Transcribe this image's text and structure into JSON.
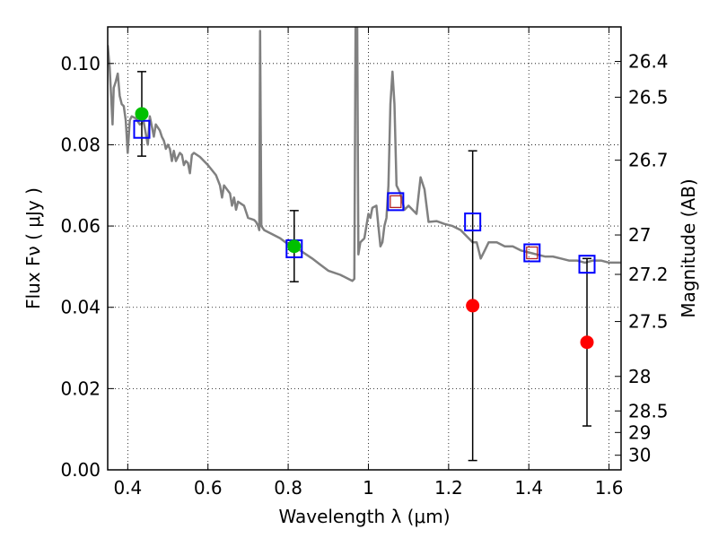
{
  "chart_data": {
    "type": "scatter",
    "xlabel": "Wavelength  λ (μm)",
    "ylabel": "Flux  Fν  ( μJy )",
    "y2label": "Magnitude (AB)",
    "xlim": [
      0.35,
      1.63
    ],
    "ylim": [
      0.0,
      0.109
    ],
    "grid": true,
    "x_ticks": [
      {
        "value": 0.4,
        "label": "0.4"
      },
      {
        "value": 0.6,
        "label": "0.6"
      },
      {
        "value": 0.8,
        "label": "0.8"
      },
      {
        "value": 1.0,
        "label": "1"
      },
      {
        "value": 1.2,
        "label": "1.2"
      },
      {
        "value": 1.4,
        "label": "1.4"
      },
      {
        "value": 1.6,
        "label": "1.6"
      }
    ],
    "y_ticks": [
      {
        "value": 0.0,
        "label": "0.00"
      },
      {
        "value": 0.02,
        "label": "0.02"
      },
      {
        "value": 0.04,
        "label": "0.04"
      },
      {
        "value": 0.06,
        "label": "0.06"
      },
      {
        "value": 0.08,
        "label": "0.08"
      },
      {
        "value": 0.1,
        "label": "0.10"
      }
    ],
    "y2_ticks": [
      {
        "label": "26.4",
        "flux": 0.1005
      },
      {
        "label": "26.5",
        "flux": 0.0917
      },
      {
        "label": "26.7",
        "flux": 0.0762
      },
      {
        "label": "27",
        "flux": 0.0578
      },
      {
        "label": "27.2",
        "flux": 0.0481
      },
      {
        "label": "27.5",
        "flux": 0.0365
      },
      {
        "label": "28",
        "flux": 0.023
      },
      {
        "label": "28.5",
        "flux": 0.0145
      },
      {
        "label": "29",
        "flux": 0.0092
      },
      {
        "label": "30",
        "flux": 0.0036
      }
    ],
    "model_spectrum": {
      "color": "#808080",
      "points": [
        [
          0.35,
          0.1045
        ],
        [
          0.355,
          0.099
        ],
        [
          0.36,
          0.089
        ],
        [
          0.362,
          0.085
        ],
        [
          0.365,
          0.094
        ],
        [
          0.37,
          0.0955
        ],
        [
          0.375,
          0.0975
        ],
        [
          0.38,
          0.092
        ],
        [
          0.385,
          0.09
        ],
        [
          0.39,
          0.0895
        ],
        [
          0.395,
          0.086
        ],
        [
          0.4,
          0.078
        ],
        [
          0.405,
          0.086
        ],
        [
          0.41,
          0.087
        ],
        [
          0.42,
          0.0865
        ],
        [
          0.43,
          0.085
        ],
        [
          0.44,
          0.0855
        ],
        [
          0.45,
          0.08
        ],
        [
          0.455,
          0.087
        ],
        [
          0.46,
          0.0845
        ],
        [
          0.465,
          0.082
        ],
        [
          0.47,
          0.085
        ],
        [
          0.48,
          0.0835
        ],
        [
          0.485,
          0.082
        ],
        [
          0.49,
          0.081
        ],
        [
          0.495,
          0.079
        ],
        [
          0.5,
          0.08
        ],
        [
          0.505,
          0.079
        ],
        [
          0.51,
          0.076
        ],
        [
          0.515,
          0.0785
        ],
        [
          0.52,
          0.076
        ],
        [
          0.53,
          0.078
        ],
        [
          0.535,
          0.0775
        ],
        [
          0.54,
          0.075
        ],
        [
          0.545,
          0.076
        ],
        [
          0.55,
          0.0755
        ],
        [
          0.555,
          0.073
        ],
        [
          0.56,
          0.0775
        ],
        [
          0.565,
          0.078
        ],
        [
          0.58,
          0.077
        ],
        [
          0.6,
          0.075
        ],
        [
          0.62,
          0.0725
        ],
        [
          0.63,
          0.07
        ],
        [
          0.635,
          0.067
        ],
        [
          0.64,
          0.07
        ],
        [
          0.655,
          0.068
        ],
        [
          0.66,
          0.065
        ],
        [
          0.665,
          0.067
        ],
        [
          0.67,
          0.064
        ],
        [
          0.675,
          0.066
        ],
        [
          0.69,
          0.065
        ],
        [
          0.7,
          0.062
        ],
        [
          0.715,
          0.0615
        ],
        [
          0.72,
          0.061
        ],
        [
          0.725,
          0.06
        ],
        [
          0.728,
          0.059
        ],
        [
          0.73,
          0.108
        ],
        [
          0.733,
          0.06
        ],
        [
          0.74,
          0.059
        ],
        [
          0.76,
          0.058
        ],
        [
          0.78,
          0.057
        ],
        [
          0.8,
          0.0555
        ],
        [
          0.83,
          0.054
        ],
        [
          0.86,
          0.052
        ],
        [
          0.88,
          0.0505
        ],
        [
          0.9,
          0.049
        ],
        [
          0.93,
          0.048
        ],
        [
          0.95,
          0.047
        ],
        [
          0.96,
          0.0465
        ],
        [
          0.965,
          0.047
        ],
        [
          0.968,
          0.11
        ],
        [
          0.972,
          0.11
        ],
        [
          0.975,
          0.053
        ],
        [
          0.98,
          0.056
        ],
        [
          0.99,
          0.057
        ],
        [
          1.0,
          0.063
        ],
        [
          1.005,
          0.062
        ],
        [
          1.01,
          0.0645
        ],
        [
          1.02,
          0.065
        ],
        [
          1.025,
          0.06
        ],
        [
          1.03,
          0.055
        ],
        [
          1.035,
          0.056
        ],
        [
          1.04,
          0.06
        ],
        [
          1.045,
          0.062
        ],
        [
          1.05,
          0.07
        ],
        [
          1.055,
          0.09
        ],
        [
          1.06,
          0.098
        ],
        [
          1.065,
          0.09
        ],
        [
          1.07,
          0.07
        ],
        [
          1.08,
          0.068
        ],
        [
          1.09,
          0.064
        ],
        [
          1.1,
          0.065
        ],
        [
          1.11,
          0.064
        ],
        [
          1.12,
          0.063
        ],
        [
          1.13,
          0.072
        ],
        [
          1.14,
          0.069
        ],
        [
          1.15,
          0.061
        ],
        [
          1.17,
          0.0612
        ],
        [
          1.19,
          0.0605
        ],
        [
          1.21,
          0.06
        ],
        [
          1.23,
          0.059
        ],
        [
          1.25,
          0.057
        ],
        [
          1.26,
          0.056
        ],
        [
          1.27,
          0.056
        ],
        [
          1.275,
          0.054
        ],
        [
          1.28,
          0.052
        ],
        [
          1.29,
          0.054
        ],
        [
          1.3,
          0.056
        ],
        [
          1.32,
          0.056
        ],
        [
          1.34,
          0.055
        ],
        [
          1.36,
          0.055
        ],
        [
          1.38,
          0.054
        ],
        [
          1.4,
          0.0535
        ],
        [
          1.42,
          0.053
        ],
        [
          1.44,
          0.0525
        ],
        [
          1.46,
          0.0525
        ],
        [
          1.48,
          0.052
        ],
        [
          1.5,
          0.0515
        ],
        [
          1.52,
          0.0515
        ],
        [
          1.54,
          0.051
        ],
        [
          1.56,
          0.0515
        ],
        [
          1.58,
          0.0515
        ],
        [
          1.6,
          0.051
        ],
        [
          1.63,
          0.051
        ]
      ]
    },
    "series": [
      {
        "marker": "open-square",
        "color": "#0000ff",
        "points": [
          {
            "x": 0.435,
            "y": 0.0838
          },
          {
            "x": 0.815,
            "y": 0.0544
          },
          {
            "x": 1.068,
            "y": 0.066
          },
          {
            "x": 1.26,
            "y": 0.061
          },
          {
            "x": 1.408,
            "y": 0.0534
          },
          {
            "x": 1.545,
            "y": 0.0506
          }
        ]
      },
      {
        "marker": "small-red-square",
        "color": "#b22222",
        "points": [
          {
            "x": 1.068,
            "y": 0.066
          },
          {
            "x": 1.408,
            "y": 0.0534
          }
        ]
      },
      {
        "marker": "green-circle",
        "color": "#00c000",
        "points": [
          {
            "x": 0.435,
            "y": 0.0876
          },
          {
            "x": 0.815,
            "y": 0.055
          }
        ]
      },
      {
        "marker": "red-circle",
        "color": "#ff0000",
        "points": [
          {
            "x": 1.26,
            "y": 0.0404
          },
          {
            "x": 1.545,
            "y": 0.0314
          }
        ]
      }
    ],
    "error_bars": [
      {
        "x": 0.435,
        "low": 0.0772,
        "high": 0.098
      },
      {
        "x": 0.815,
        "low": 0.0463,
        "high": 0.0638
      },
      {
        "x": 1.26,
        "low": 0.0023,
        "high": 0.0785
      },
      {
        "x": 1.545,
        "low": 0.0108,
        "high": 0.052
      }
    ]
  }
}
